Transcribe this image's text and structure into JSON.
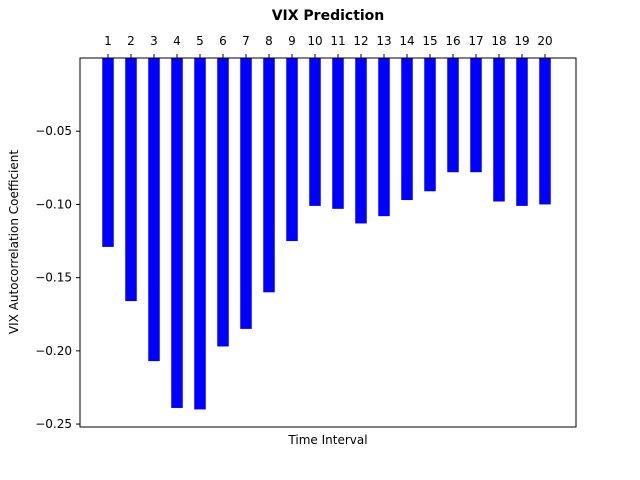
{
  "chart_data": {
    "type": "bar",
    "title": "VIX Prediction",
    "xlabel": "Time Interval",
    "ylabel": "VIX Autocorrelation Coefficient",
    "categories": [
      "1",
      "2",
      "3",
      "4",
      "5",
      "6",
      "7",
      "8",
      "9",
      "10",
      "11",
      "12",
      "13",
      "14",
      "15",
      "16",
      "17",
      "18",
      "19",
      "20"
    ],
    "values": [
      -0.129,
      -0.166,
      -0.207,
      -0.239,
      -0.24,
      -0.197,
      -0.185,
      -0.16,
      -0.125,
      -0.101,
      -0.103,
      -0.113,
      -0.108,
      -0.097,
      -0.091,
      -0.078,
      -0.078,
      -0.098,
      -0.101,
      -0.1
    ],
    "ylim": [
      -0.252,
      0.0
    ],
    "yticks": [
      -0.25,
      -0.2,
      -0.15,
      -0.1,
      -0.05
    ],
    "ytick_labels": [
      "−0.25",
      "−0.20",
      "−0.15",
      "−0.10",
      "−0.05"
    ],
    "x_tick_position": "top",
    "grid": false,
    "bar_color": "#0000ff"
  }
}
